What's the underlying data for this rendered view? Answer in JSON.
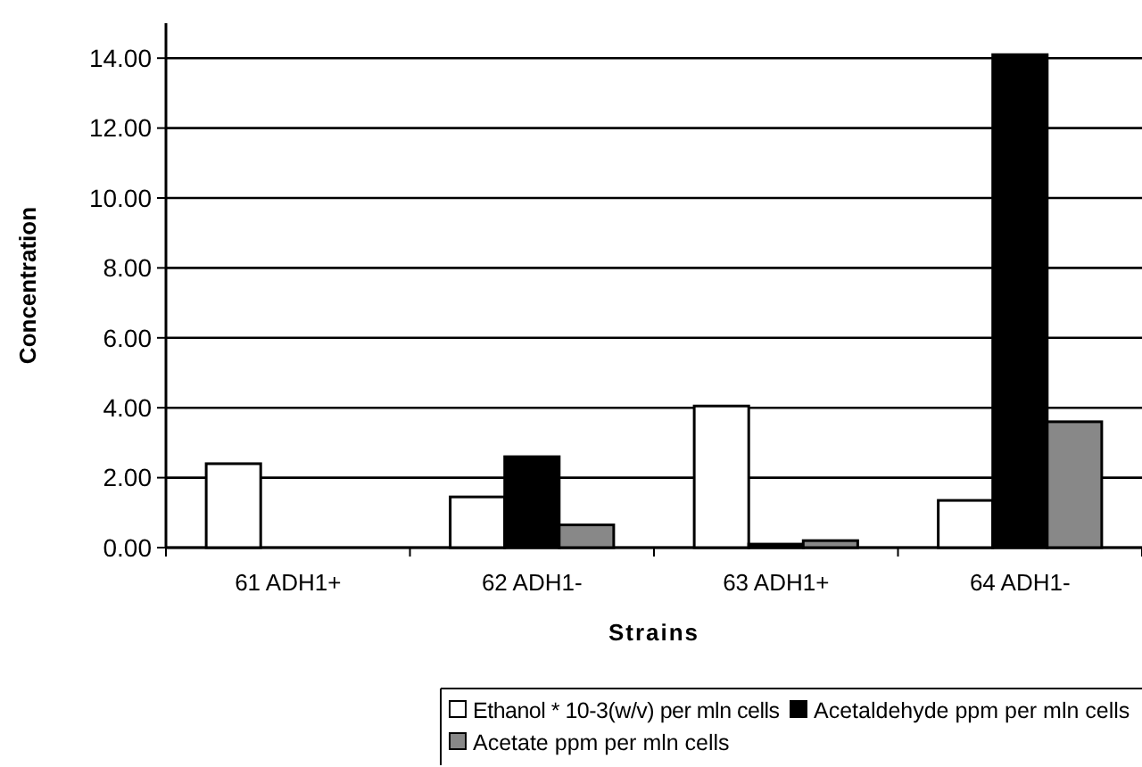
{
  "chart_data": {
    "type": "bar",
    "xlabel": "Strains",
    "ylabel": "Concentration",
    "categories": [
      "61 ADH1+",
      "62 ADH1-",
      "63 ADH1+",
      "64 ADH1-"
    ],
    "series": [
      {
        "name": "Ethanol * 10-3(w/v) per mln cells",
        "color": "#ffffff",
        "values": [
          2.4,
          1.45,
          4.05,
          1.35
        ]
      },
      {
        "name": "Acetaldehyde ppm per mln cells",
        "color": "#000000",
        "values": [
          0,
          2.6,
          0.1,
          14.1
        ]
      },
      {
        "name": "Acetate ppm per mln cells",
        "color": "#888888",
        "values": [
          0,
          0.65,
          0.2,
          3.6
        ]
      }
    ],
    "ylim": [
      0,
      15
    ],
    "yticks": [
      {
        "value": 0,
        "label": "0.00"
      },
      {
        "value": 2,
        "label": "2.00"
      },
      {
        "value": 4,
        "label": "4.00"
      },
      {
        "value": 6,
        "label": "6.00"
      },
      {
        "value": 8,
        "label": "8.00"
      },
      {
        "value": 10,
        "label": "10.00"
      },
      {
        "value": 12,
        "label": "12.00"
      },
      {
        "value": 14,
        "label": "14.00"
      }
    ],
    "grid": "y",
    "legend": "bottom"
  }
}
